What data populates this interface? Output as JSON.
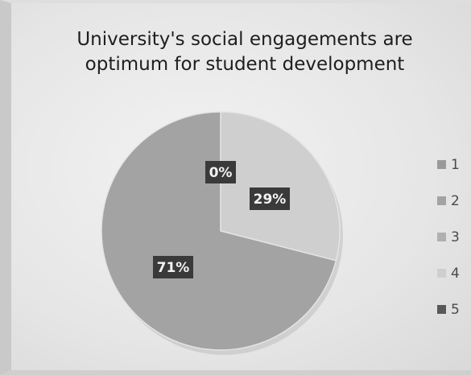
{
  "chart_data": {
    "type": "pie",
    "title": [
      "University's social engagements are",
      "optimum for student development"
    ],
    "categories": [
      "1",
      "2",
      "3",
      "4",
      "5"
    ],
    "values": [
      0,
      71,
      0,
      29,
      0
    ],
    "data_labels": [
      "0%",
      "71%",
      "",
      "29%",
      ""
    ],
    "legend": "right",
    "colors": [
      "#9a9a9a",
      "#a3a3a3",
      "#b0b0b0",
      "#cfcfcf",
      "#585858"
    ],
    "label_box_color": "#3a3a3a"
  }
}
